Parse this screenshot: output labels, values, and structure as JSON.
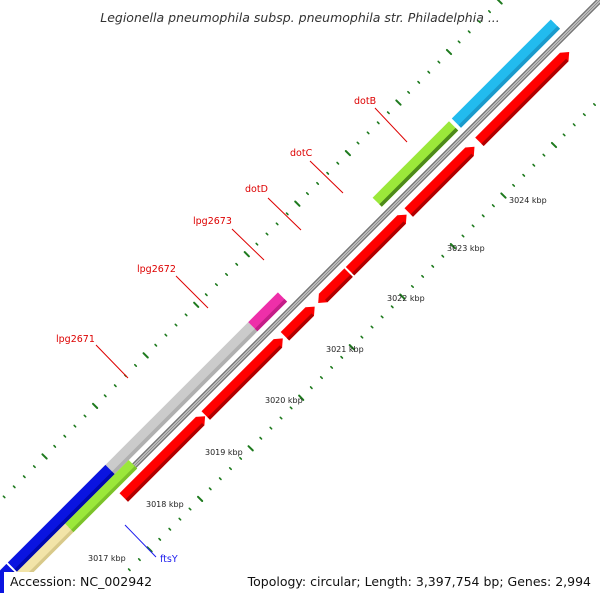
{
  "title": "Legionella pneumophila subsp. pneumophila str. Philadelphia ...",
  "footer": {
    "accession": "Accession: NC_002942",
    "summary": "Topology: circular; Length: 3,397,754 bp; Genes: 2,994"
  },
  "colors": {
    "background": "#ffffff",
    "backbone_light": "#cccccc",
    "backbone_dark": "#777777",
    "tick_marks": "#1e7a1e",
    "red_gene": "#ff0000",
    "red_gene_dark": "#b00000",
    "gray_gene": "#cbcbcb",
    "magenta_gene": "#ee2fa9",
    "lime_gene": "#9be83a",
    "lime_gene_dark": "#4d8a1a",
    "cyan_gene": "#22bbee",
    "blue_gene": "#0a14e0",
    "beige_gene": "#f2e4a8",
    "red_label": "#dd0000",
    "blue_label": "#1a1aee"
  },
  "scale_ticks": [
    {
      "label": "3017 kbp"
    },
    {
      "label": "3018 kbp"
    },
    {
      "label": "3019 kbp"
    },
    {
      "label": "3020 kbp"
    },
    {
      "label": "3021 kbp"
    },
    {
      "label": "3022 kbp"
    },
    {
      "label": "3023 kbp"
    },
    {
      "label": "3024 kbp"
    }
  ],
  "gene_labels": [
    {
      "name": "lpg2671",
      "color": "red"
    },
    {
      "name": "lpg2672",
      "color": "red"
    },
    {
      "name": "lpg2673",
      "color": "red"
    },
    {
      "name": "dotD",
      "color": "red"
    },
    {
      "name": "dotC",
      "color": "red"
    },
    {
      "name": "dotB",
      "color": "red"
    },
    {
      "name": "ftsY",
      "color": "blue"
    }
  ]
}
